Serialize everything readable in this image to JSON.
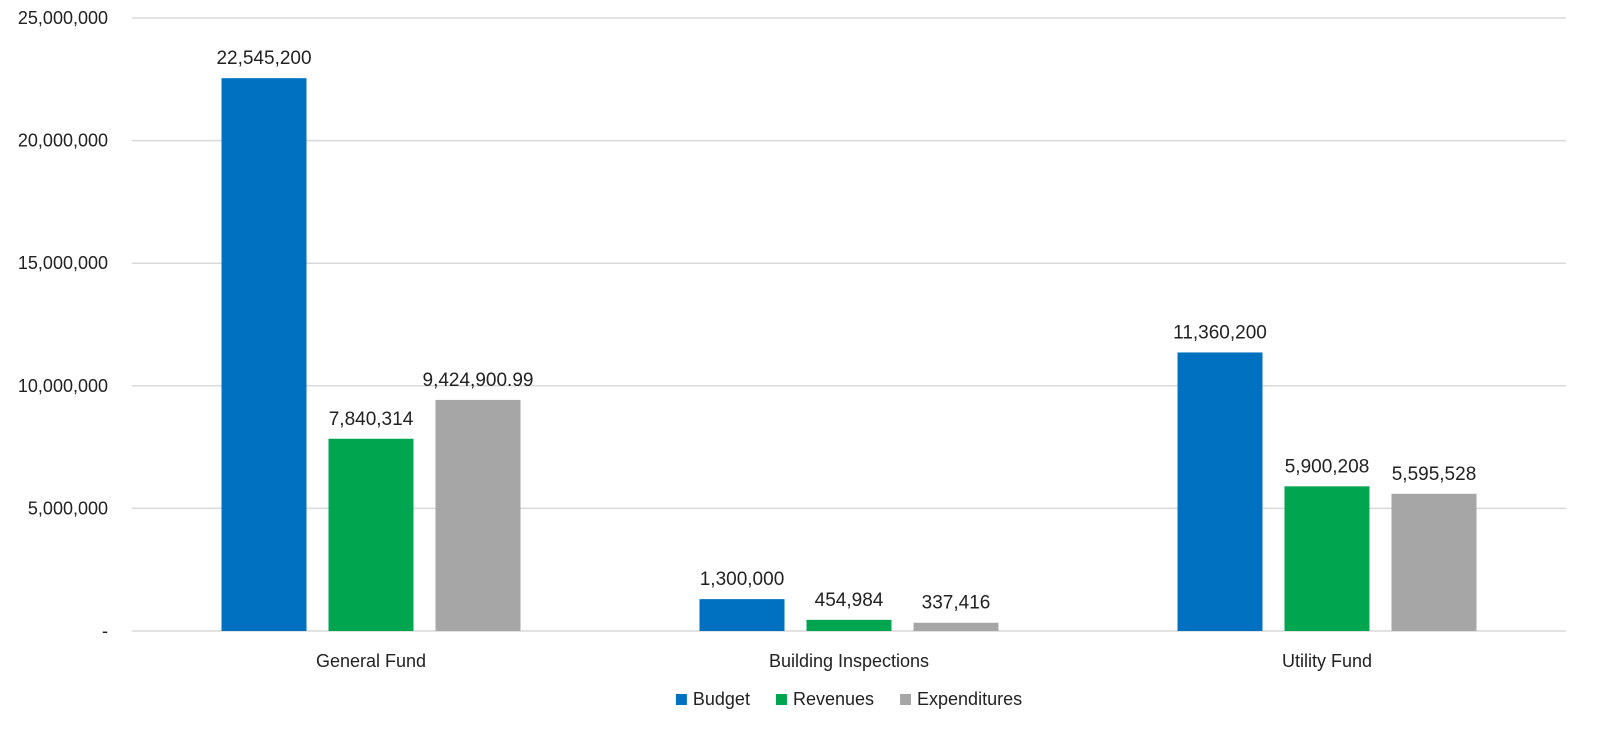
{
  "chart_data": {
    "type": "bar",
    "title": "",
    "xlabel": "",
    "ylabel": "",
    "categories": [
      "General Fund",
      "Building Inspections",
      "Utility Fund"
    ],
    "series": [
      {
        "name": "Budget",
        "color": "#0070C0",
        "values": [
          22545200,
          1300000,
          11360200
        ],
        "labels": [
          "22,545,200",
          "1,300,000",
          "11,360,200"
        ]
      },
      {
        "name": "Revenues",
        "color": "#00A550",
        "values": [
          7840314,
          454984,
          5900208
        ],
        "labels": [
          "7,840,314",
          "454,984",
          "5,900,208"
        ]
      },
      {
        "name": "Expenditures",
        "color": "#A6A6A6",
        "values": [
          9424900.99,
          337416,
          5595528
        ],
        "labels": [
          "9,424,900.99",
          "337,416",
          "5,595,528"
        ]
      }
    ],
    "ylim": [
      0,
      25000000
    ],
    "yticks": [
      0,
      5000000,
      10000000,
      15000000,
      20000000,
      25000000
    ],
    "ytick_labels": [
      "-",
      "5,000,000",
      "10,000,000",
      "15,000,000",
      "20,000,000",
      "25,000,000"
    ],
    "grid": true,
    "gridline_color": "#D9D9D9",
    "legend_position": "bottom-center"
  }
}
